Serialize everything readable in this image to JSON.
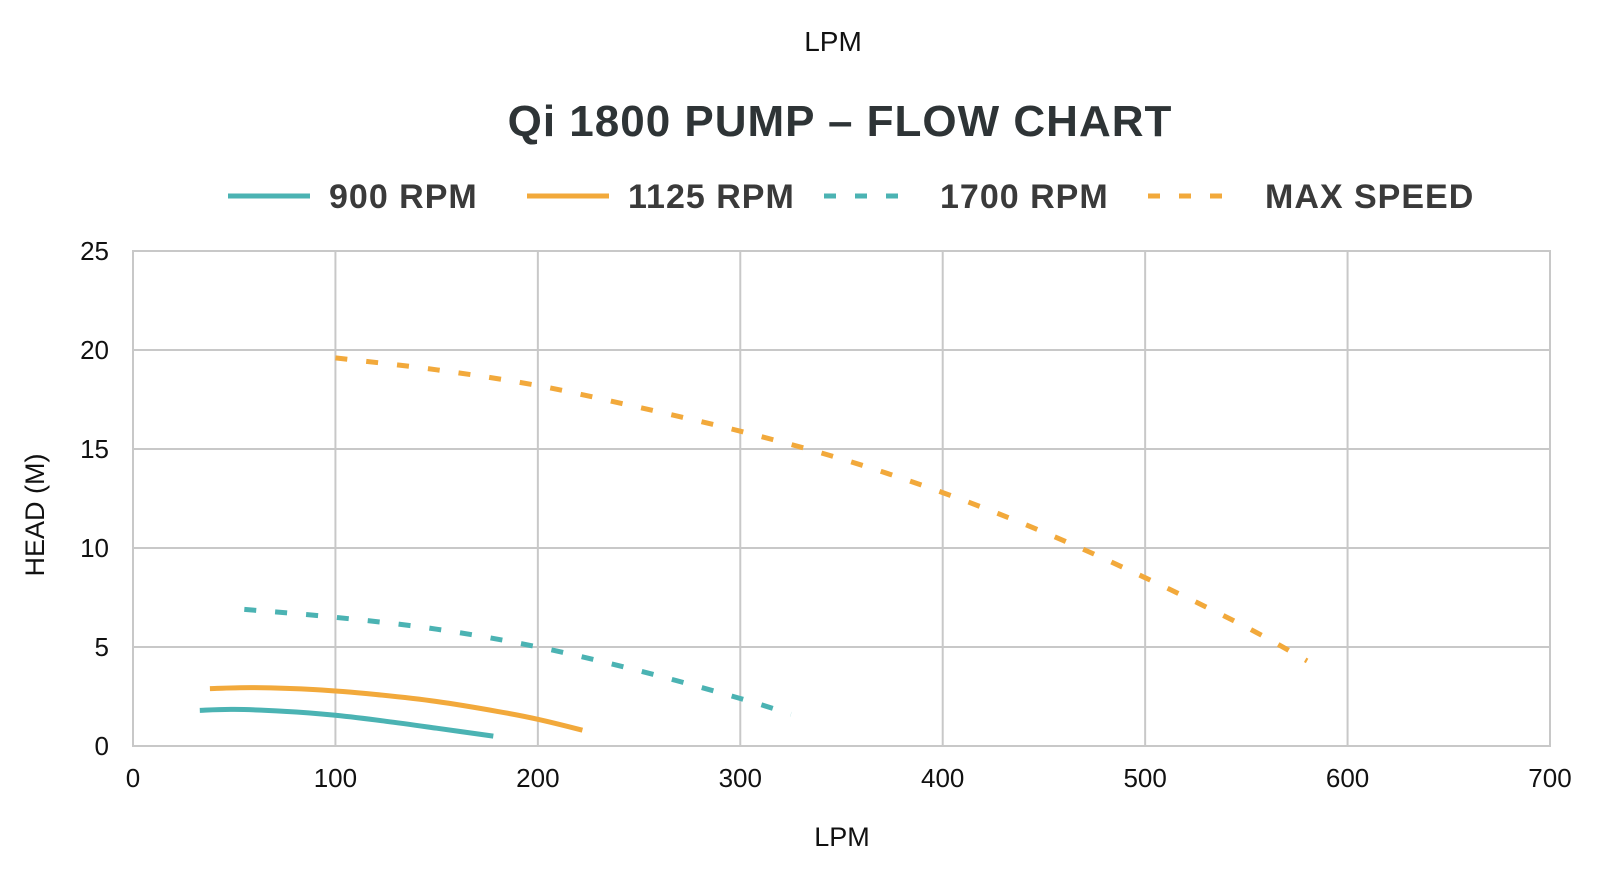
{
  "colors": {
    "teal": "#4bb3b3",
    "orange": "#f2a93b",
    "grid": "#c8c8c8"
  },
  "chart_data": {
    "type": "line",
    "top_label": "LPM",
    "title": "Qi 1800 PUMP – FLOW CHART",
    "xlabel": "LPM",
    "ylabel": "HEAD (M)",
    "xlim": [
      0,
      700
    ],
    "ylim": [
      0,
      25
    ],
    "x_ticks": [
      0,
      100,
      200,
      300,
      400,
      500,
      600,
      700
    ],
    "y_ticks": [
      0,
      5,
      10,
      15,
      20,
      25
    ],
    "grid": true,
    "legend_position": "top",
    "series": [
      {
        "name": "900 RPM",
        "color": "#4bb3b3",
        "style": "solid",
        "x": [
          33,
          50,
          75,
          100,
          125,
          150,
          178
        ],
        "y": [
          1.8,
          1.85,
          1.75,
          1.55,
          1.25,
          0.9,
          0.5
        ]
      },
      {
        "name": "1125 RPM",
        "color": "#f2a93b",
        "style": "solid",
        "x": [
          38,
          60,
          90,
          120,
          150,
          180,
          200,
          222
        ],
        "y": [
          2.9,
          2.95,
          2.85,
          2.6,
          2.25,
          1.75,
          1.35,
          0.8
        ]
      },
      {
        "name": "1700 RPM",
        "color": "#4bb3b3",
        "style": "dotted",
        "x": [
          55,
          100,
          150,
          200,
          250,
          300,
          325
        ],
        "y": [
          6.9,
          6.5,
          5.9,
          5.0,
          3.8,
          2.4,
          1.6
        ]
      },
      {
        "name": "MAX SPEED",
        "color": "#f2a93b",
        "style": "dotted",
        "x": [
          100,
          150,
          200,
          250,
          300,
          350,
          400,
          450,
          500,
          550,
          580
        ],
        "y": [
          19.6,
          19.0,
          18.2,
          17.1,
          15.9,
          14.5,
          12.8,
          10.8,
          8.5,
          6.0,
          4.3
        ]
      }
    ]
  }
}
